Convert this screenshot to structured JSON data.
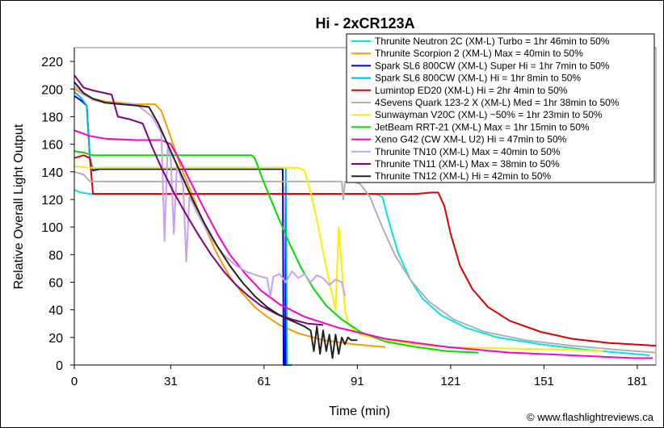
{
  "chart_data": {
    "type": "line",
    "title": "Hi - 2xCR123A",
    "xlabel": "Time (min)",
    "ylabel": "Relative Overall Light Output",
    "xlim": [
      0,
      187
    ],
    "ylim": [
      0,
      230
    ],
    "xticks": [
      0,
      31,
      61,
      91,
      121,
      151,
      181
    ],
    "yticks": [
      0,
      20,
      40,
      60,
      80,
      100,
      120,
      140,
      160,
      180,
      200,
      220
    ],
    "grid": false,
    "legend_position": "top-right",
    "credit": "© www.flashlightreviews.ca",
    "series": [
      {
        "name": "Thrunite Neutron 2C (XM-L) Turbo = 1hr 46min to 50%",
        "color": "#00e5e5",
        "points": [
          [
            0,
            127
          ],
          [
            2,
            125
          ],
          [
            5,
            124
          ],
          [
            10,
            124
          ],
          [
            20,
            124
          ],
          [
            40,
            124
          ],
          [
            60,
            124
          ],
          [
            80,
            124
          ],
          [
            97,
            124
          ],
          [
            99,
            122
          ],
          [
            101,
            105
          ],
          [
            104,
            82
          ],
          [
            108,
            62
          ],
          [
            112,
            48
          ],
          [
            118,
            36
          ],
          [
            126,
            27
          ],
          [
            136,
            20
          ],
          [
            150,
            15
          ],
          [
            165,
            11
          ],
          [
            180,
            8
          ],
          [
            185,
            7
          ]
        ]
      },
      {
        "name": "Thrunite Scorpion 2 (XM-L) Max = 40min to 50%",
        "color": "#ff9900",
        "points": [
          [
            0,
            200
          ],
          [
            3,
            196
          ],
          [
            6,
            193
          ],
          [
            10,
            191
          ],
          [
            20,
            189
          ],
          [
            26,
            189
          ],
          [
            28,
            184
          ],
          [
            31,
            165
          ],
          [
            34,
            145
          ],
          [
            38,
            123
          ],
          [
            42,
            100
          ],
          [
            46,
            80
          ],
          [
            50,
            64
          ],
          [
            54,
            52
          ],
          [
            58,
            42
          ],
          [
            62,
            35
          ],
          [
            66,
            29
          ],
          [
            72,
            23
          ],
          [
            80,
            18
          ],
          [
            90,
            15
          ],
          [
            95,
            14
          ],
          [
            100,
            13
          ]
        ]
      },
      {
        "name": "Spark SL6 800CW (XM-L) Super Hi = 1hr 7min to 50%",
        "color": "#0000cc",
        "points": [
          [
            0,
            195
          ],
          [
            2,
            192
          ],
          [
            4,
            188
          ],
          [
            5,
            150
          ],
          [
            6,
            141
          ],
          [
            8,
            142
          ],
          [
            20,
            142
          ],
          [
            40,
            142
          ],
          [
            60,
            142
          ],
          [
            66,
            142
          ],
          [
            67,
            142
          ],
          [
            67.3,
            0
          ],
          [
            67.8,
            0
          ],
          [
            68,
            130
          ],
          [
            68.2,
            0
          ],
          [
            70,
            0
          ]
        ]
      },
      {
        "name": "Spark SL6 800CW (XM-L) Hi = 1hr 8min to 50%",
        "color": "#00b0e8",
        "points": [
          [
            0,
            198
          ],
          [
            2,
            194
          ],
          [
            4,
            188
          ],
          [
            5,
            150
          ],
          [
            6,
            142
          ],
          [
            8,
            143
          ],
          [
            20,
            143
          ],
          [
            40,
            143
          ],
          [
            60,
            143
          ],
          [
            68,
            143
          ],
          [
            68.4,
            0
          ],
          [
            70,
            0
          ]
        ]
      },
      {
        "name": "Lumintop ED20 (XM-L) Hi = 2hr 4min to 50%",
        "color": "#dd0000",
        "points": [
          [
            0,
            150
          ],
          [
            3,
            152
          ],
          [
            5,
            150
          ],
          [
            6,
            124
          ],
          [
            10,
            124
          ],
          [
            40,
            124
          ],
          [
            80,
            124
          ],
          [
            110,
            124
          ],
          [
            115,
            125
          ],
          [
            117,
            125
          ],
          [
            119,
            115
          ],
          [
            121,
            95
          ],
          [
            124,
            72
          ],
          [
            128,
            55
          ],
          [
            133,
            42
          ],
          [
            140,
            32
          ],
          [
            150,
            24
          ],
          [
            160,
            19
          ],
          [
            172,
            16
          ],
          [
            187,
            14
          ]
        ]
      },
      {
        "name": "4Sevens Quark 123-2 X (XM-L) Med = 1hr 38min to 50%",
        "color": "#b0b0b0",
        "points": [
          [
            0,
            140
          ],
          [
            3,
            138
          ],
          [
            5,
            133
          ],
          [
            10,
            133
          ],
          [
            40,
            133
          ],
          [
            60,
            133
          ],
          [
            80,
            133
          ],
          [
            86,
            133
          ],
          [
            86.5,
            120
          ],
          [
            87,
            133
          ],
          [
            90,
            133
          ],
          [
            92,
            131
          ],
          [
            95,
            122
          ],
          [
            99,
            100
          ],
          [
            103,
            80
          ],
          [
            108,
            62
          ],
          [
            114,
            46
          ],
          [
            122,
            33
          ],
          [
            132,
            24
          ],
          [
            145,
            18
          ],
          [
            160,
            14
          ],
          [
            175,
            11
          ],
          [
            187,
            9
          ]
        ]
      },
      {
        "name": "Sunwayman V20C (XM-L) ~50% = 1hr 23min to 50%",
        "color": "#ffee00",
        "points": [
          [
            0,
            144
          ],
          [
            5,
            143
          ],
          [
            20,
            143
          ],
          [
            40,
            143
          ],
          [
            60,
            143
          ],
          [
            65,
            143
          ],
          [
            70,
            143
          ],
          [
            72,
            143
          ],
          [
            74,
            141
          ],
          [
            76,
            125
          ],
          [
            78,
            105
          ],
          [
            80,
            82
          ],
          [
            82,
            60
          ],
          [
            83,
            50
          ],
          [
            84,
            40
          ],
          [
            85,
            100
          ],
          [
            86,
            70
          ],
          [
            87,
            40
          ],
          [
            88,
            30
          ],
          [
            90,
            25
          ],
          [
            92,
            22
          ],
          [
            100,
            18
          ],
          [
            110,
            15
          ],
          [
            120,
            13
          ],
          [
            140,
            12
          ],
          [
            160,
            11
          ],
          [
            170,
            10
          ]
        ]
      },
      {
        "name": "JetBeam RRT-21 (XM-L) Max = 1hr 15min to 50%",
        "color": "#00dd00",
        "points": [
          [
            0,
            155
          ],
          [
            3,
            154
          ],
          [
            6,
            152
          ],
          [
            20,
            152
          ],
          [
            40,
            152
          ],
          [
            57,
            152
          ],
          [
            58,
            150
          ],
          [
            61,
            132
          ],
          [
            65,
            110
          ],
          [
            69,
            89
          ],
          [
            73,
            70
          ],
          [
            77,
            55
          ],
          [
            81,
            43
          ],
          [
            86,
            33
          ],
          [
            92,
            24
          ],
          [
            100,
            17
          ],
          [
            110,
            13
          ],
          [
            120,
            10
          ],
          [
            130,
            9
          ]
        ]
      },
      {
        "name": "Xeno G42 (CW XM-L U2) Hi = 47min to 50%",
        "color": "#ff00cc",
        "points": [
          [
            0,
            170
          ],
          [
            5,
            166
          ],
          [
            10,
            164
          ],
          [
            20,
            163
          ],
          [
            28,
            163
          ],
          [
            31,
            160
          ],
          [
            34,
            148
          ],
          [
            38,
            130
          ],
          [
            42,
            112
          ],
          [
            46,
            95
          ],
          [
            50,
            80
          ],
          [
            55,
            66
          ],
          [
            60,
            54
          ],
          [
            66,
            44
          ],
          [
            74,
            35
          ],
          [
            85,
            27
          ],
          [
            100,
            19
          ],
          [
            120,
            13
          ],
          [
            140,
            9
          ],
          [
            160,
            7
          ],
          [
            180,
            5
          ],
          [
            186,
            5
          ]
        ]
      },
      {
        "name": "Thrunite TN10 (XM-L) Max = 40min to 50%",
        "color": "#c8a0f0",
        "points": [
          [
            0,
            202
          ],
          [
            3,
            196
          ],
          [
            6,
            192
          ],
          [
            10,
            190
          ],
          [
            15,
            189
          ],
          [
            20,
            189
          ],
          [
            25,
            180
          ],
          [
            28,
            168
          ],
          [
            29,
            90
          ],
          [
            30,
            158
          ],
          [
            31,
            150
          ],
          [
            32,
            95
          ],
          [
            33,
            145
          ],
          [
            35,
            130
          ],
          [
            36,
            75
          ],
          [
            37,
            122
          ],
          [
            40,
            108
          ],
          [
            44,
            92
          ],
          [
            48,
            80
          ],
          [
            52,
            72
          ],
          [
            56,
            67
          ],
          [
            60,
            64
          ],
          [
            62,
            63
          ],
          [
            63,
            50
          ],
          [
            64,
            64
          ],
          [
            66,
            66
          ],
          [
            68,
            60
          ],
          [
            70,
            68
          ],
          [
            72,
            63
          ],
          [
            74,
            66
          ],
          [
            76,
            60
          ],
          [
            78,
            65
          ],
          [
            80,
            63
          ],
          [
            82,
            58
          ],
          [
            84,
            62
          ],
          [
            86,
            60
          ],
          [
            87,
            50
          ]
        ]
      },
      {
        "name": "Thrunite TN11 (XM-L) Max = 38min to 50%",
        "color": "#800080",
        "points": [
          [
            0,
            210
          ],
          [
            3,
            201
          ],
          [
            6,
            199
          ],
          [
            10,
            197
          ],
          [
            12,
            196
          ],
          [
            14,
            180
          ],
          [
            18,
            178
          ],
          [
            22,
            175
          ],
          [
            25,
            158
          ],
          [
            28,
            143
          ],
          [
            32,
            125
          ],
          [
            36,
            109
          ],
          [
            40,
            94
          ],
          [
            44,
            80
          ],
          [
            48,
            68
          ],
          [
            52,
            58
          ],
          [
            56,
            50
          ],
          [
            60,
            43
          ],
          [
            65,
            37
          ],
          [
            70,
            33
          ],
          [
            75,
            30
          ],
          [
            80,
            29
          ]
        ]
      },
      {
        "name": "Thrunite TN12 (XM-L) Hi = 42min to 50%",
        "color": "#222222",
        "points": [
          [
            0,
            205
          ],
          [
            3,
            197
          ],
          [
            6,
            193
          ],
          [
            10,
            190
          ],
          [
            20,
            188
          ],
          [
            24,
            187
          ],
          [
            27,
            175
          ],
          [
            30,
            160
          ],
          [
            34,
            140
          ],
          [
            38,
            120
          ],
          [
            42,
            102
          ],
          [
            46,
            86
          ],
          [
            50,
            72
          ],
          [
            54,
            60
          ],
          [
            58,
            50
          ],
          [
            62,
            42
          ],
          [
            66,
            36
          ],
          [
            70,
            32
          ],
          [
            74,
            28
          ],
          [
            76,
            25
          ],
          [
            77,
            10
          ],
          [
            78,
            28
          ],
          [
            79,
            8
          ],
          [
            80,
            25
          ],
          [
            81,
            10
          ],
          [
            82,
            22
          ],
          [
            83,
            5
          ],
          [
            84,
            22
          ],
          [
            85,
            8
          ],
          [
            86,
            20
          ],
          [
            87,
            15
          ],
          [
            88,
            20
          ],
          [
            89,
            18
          ],
          [
            90,
            18
          ],
          [
            91,
            18
          ]
        ]
      }
    ]
  }
}
